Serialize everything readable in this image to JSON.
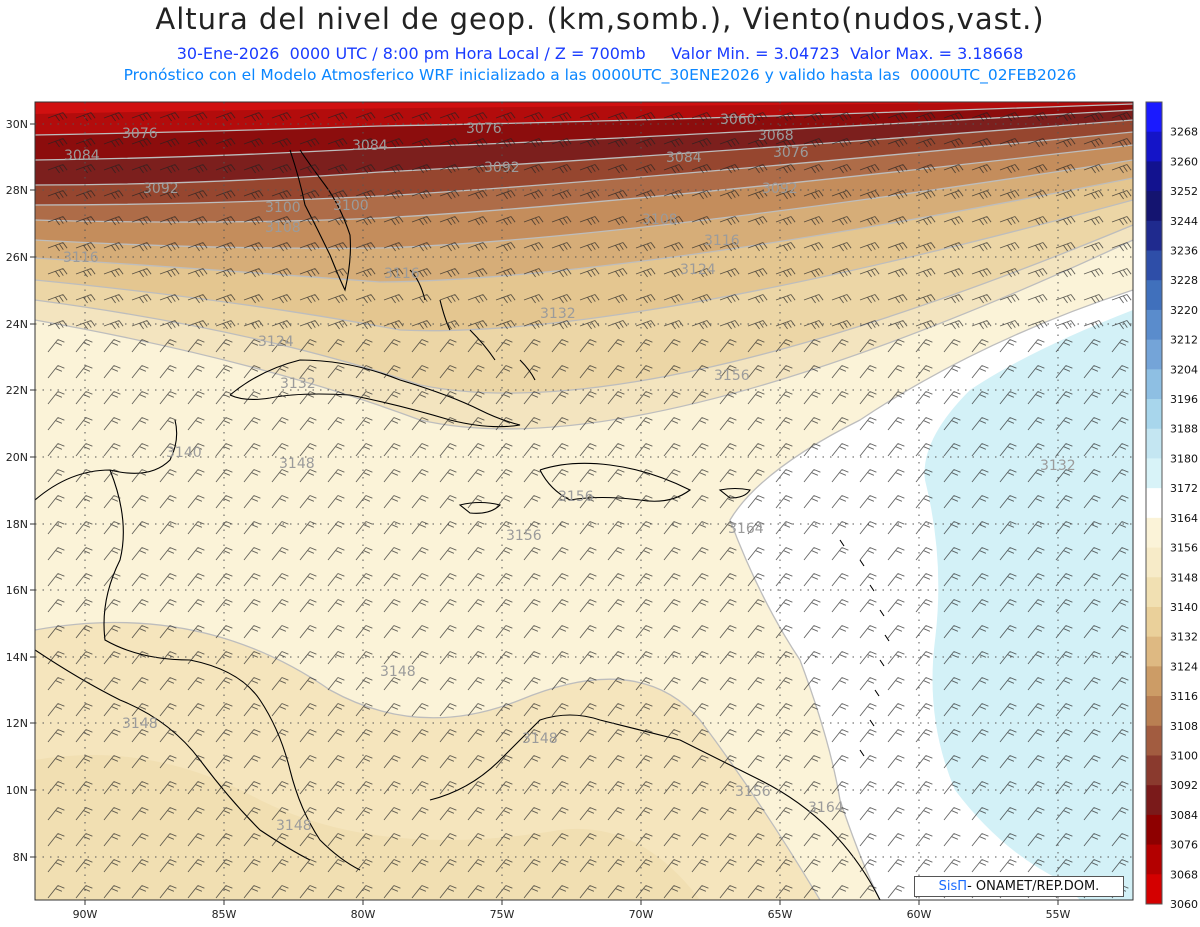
{
  "title": "Altura del nivel de geop. (km,somb.), Viento(nudos,vast.)",
  "subtitle_line1": "30-Ene-2026  0000 UTC / 8:00 pm Hora Local / Z = 700mb     Valor Min. = 3.04723  Valor Max. = 3.18668",
  "subtitle_line2": "Pronóstico con el Modelo Atmosferico WRF inicializado a las 0000UTC_30ENE2026 y valido hasta las  0000UTC_02FEB2026",
  "credit_sis": "SisΠ",
  "credit_rest": "- ONAMET/REP.DOM.",
  "lat_labels": [
    "30N",
    "28N",
    "26N",
    "24N",
    "22N",
    "20N",
    "18N",
    "16N",
    "14N",
    "12N",
    "10N",
    "8N"
  ],
  "lon_labels": [
    "90W",
    "85W",
    "80W",
    "75W",
    "70W",
    "65W",
    "60W",
    "55W"
  ],
  "colorbar": {
    "levels": [
      "3268",
      "3260",
      "3252",
      "3244",
      "3236",
      "3228",
      "3220",
      "3212",
      "3204",
      "3196",
      "3188",
      "3180",
      "3172",
      "3164",
      "3156",
      "3148",
      "3140",
      "3132",
      "3124",
      "3116",
      "3108",
      "3100",
      "3092",
      "3084",
      "3076",
      "3068",
      "3060"
    ],
    "colors": [
      "#1a1aff",
      "#1414c8",
      "#12128f",
      "#141470",
      "#1f2a8e",
      "#2e4ea8",
      "#4070bc",
      "#5a8ccc",
      "#74a4d8",
      "#8ebfe3",
      "#a8d6ec",
      "#c4e6f2",
      "#d8f3f8",
      "#ffffff",
      "#fbf3d8",
      "#f7ebc8",
      "#f1e0b2",
      "#ead09a",
      "#deb982",
      "#cc9c66",
      "#b97f52",
      "#a25c40",
      "#8a3a2e",
      "#7a1a1a",
      "#8e0000",
      "#b30000",
      "#d40000"
    ]
  },
  "contour_labels": [
    {
      "text": "3076"
    },
    {
      "text": "3084"
    },
    {
      "text": "3092"
    },
    {
      "text": "3100"
    },
    {
      "text": "3108"
    },
    {
      "text": "3116"
    },
    {
      "text": "3084"
    },
    {
      "text": "3076"
    },
    {
      "text": "3060"
    },
    {
      "text": "3068"
    },
    {
      "text": "3076"
    },
    {
      "text": "3084"
    },
    {
      "text": "3092"
    },
    {
      "text": "3100"
    },
    {
      "text": "3092"
    },
    {
      "text": "3108"
    },
    {
      "text": "3116"
    },
    {
      "text": "3124"
    },
    {
      "text": "3116"
    },
    {
      "text": "3132"
    },
    {
      "text": "3124"
    },
    {
      "text": "3132"
    },
    {
      "text": "3156"
    },
    {
      "text": "3140"
    },
    {
      "text": "3148"
    },
    {
      "text": "3156"
    },
    {
      "text": "3156"
    },
    {
      "text": "3164"
    },
    {
      "text": "3148"
    },
    {
      "text": "3148"
    },
    {
      "text": "3148"
    },
    {
      "text": "3156"
    },
    {
      "text": "3164"
    },
    {
      "text": "3148"
    },
    {
      "text": "3132"
    }
  ]
}
